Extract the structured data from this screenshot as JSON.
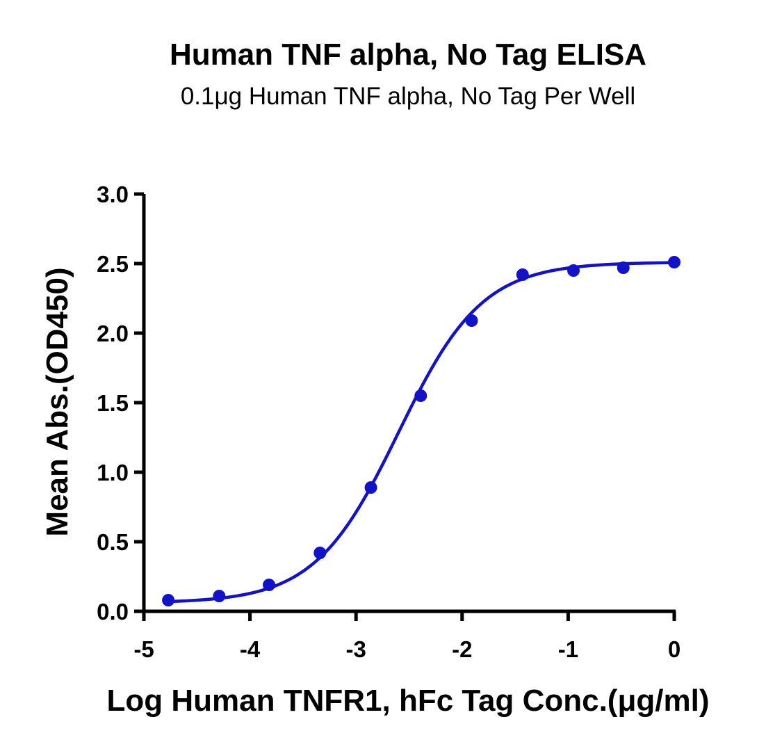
{
  "chart_data": {
    "type": "scatter",
    "title": "Human TNF alpha, No Tag ELISA",
    "subtitle": "0.1μg Human TNF alpha, No Tag Per Well",
    "xlabel": "Log Human TNFR1, hFc Tag Conc.(μg/ml)",
    "ylabel": "Mean Abs.(OD450)",
    "xlim": [
      -5,
      0
    ],
    "ylim": [
      0,
      3.0
    ],
    "x_ticks": [
      -5,
      -4,
      -3,
      -2,
      -1,
      0
    ],
    "x_tick_labels": [
      "-5",
      "-4",
      "-3",
      "-2",
      "-1",
      "0"
    ],
    "y_ticks": [
      0,
      0.5,
      1.0,
      1.5,
      2.0,
      2.5,
      3.0
    ],
    "y_tick_labels": [
      "0.0",
      "0.5",
      "1.0",
      "1.5",
      "2.0",
      "2.5",
      "3.0"
    ],
    "grid": false,
    "legend": "none",
    "series": [
      {
        "color": "#1212c8",
        "marker": "circle",
        "x": [
          -4.77,
          -4.29,
          -3.82,
          -3.34,
          -2.86,
          -2.39,
          -1.91,
          -1.43,
          -0.95,
          -0.48,
          0.0
        ],
        "y": [
          0.08,
          0.11,
          0.19,
          0.42,
          0.89,
          1.55,
          2.09,
          2.42,
          2.45,
          2.47,
          2.51
        ]
      }
    ],
    "fit_curve": {
      "model": "4PL",
      "color": "#1212c8",
      "bottom": 0.06,
      "top": 2.51,
      "log_ec50": -2.6,
      "hill": 1.1
    }
  }
}
